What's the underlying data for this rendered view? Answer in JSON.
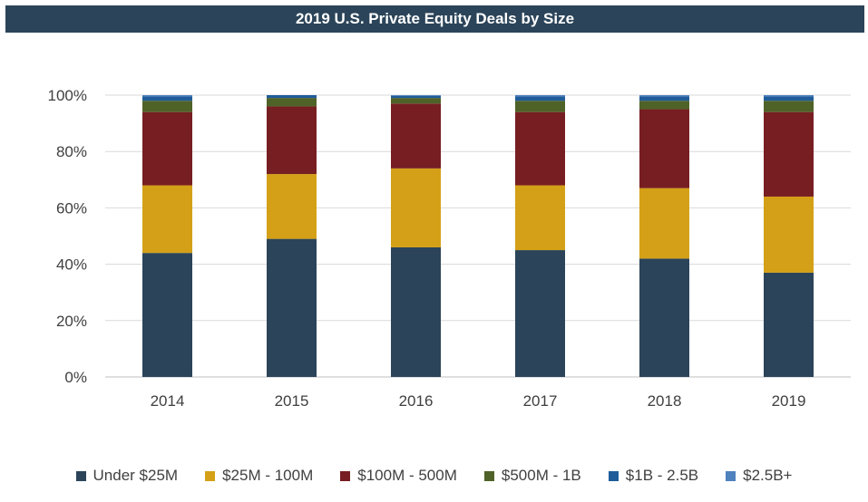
{
  "title": "2019 U.S. Private Equity Deals by Size",
  "colors": {
    "title_bg": "#2b4459",
    "grid": "#d9d9d9",
    "axis": "#bfbfbf"
  },
  "chart_data": {
    "type": "bar",
    "stacked": true,
    "title": "2019 U.S. Private Equity Deals by Size",
    "categories": [
      "2014",
      "2015",
      "2016",
      "2017",
      "2018",
      "2019"
    ],
    "ylim": [
      0,
      100
    ],
    "y_ticks": [
      "0%",
      "20%",
      "40%",
      "60%",
      "80%",
      "100%"
    ],
    "y_tick_values": [
      0,
      20,
      40,
      60,
      80,
      100
    ],
    "grid": true,
    "legend_position": "bottom",
    "series": [
      {
        "name": "Under $25M",
        "color": "#2b4459",
        "values": [
          44,
          49,
          46,
          45,
          42,
          37
        ]
      },
      {
        "name": "$25M - 100M",
        "color": "#d4a017",
        "values": [
          24,
          23,
          28,
          23,
          25,
          27
        ]
      },
      {
        "name": "$100M - 500M",
        "color": "#771e22",
        "values": [
          26,
          24,
          23,
          26,
          28,
          30
        ]
      },
      {
        "name": "$500M - 1B",
        "color": "#4f6228",
        "values": [
          4,
          3,
          2,
          4,
          3,
          4
        ]
      },
      {
        "name": "$1B - 2.5B",
        "color": "#1f5c99",
        "values": [
          1.5,
          1,
          0.7,
          1.5,
          1.5,
          1.5
        ]
      },
      {
        "name": "$2.5B+",
        "color": "#4f81bd",
        "values": [
          0.5,
          0,
          0.3,
          0.5,
          0.5,
          0.5
        ]
      }
    ]
  }
}
